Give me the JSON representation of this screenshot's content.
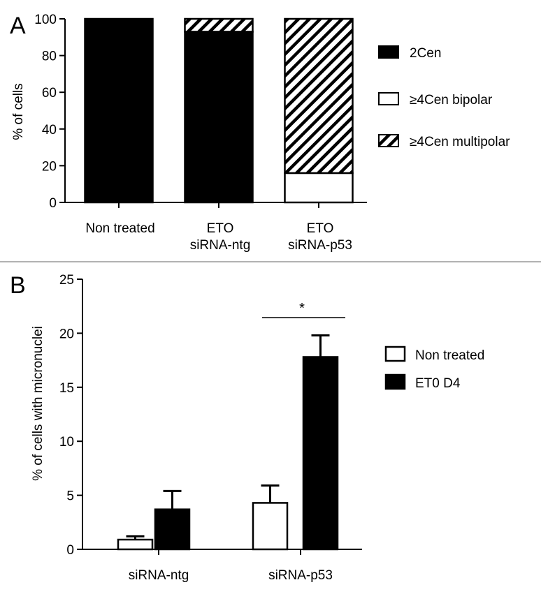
{
  "chart_data": [
    {
      "panel": "A",
      "type": "bar",
      "stacked": true,
      "title": "",
      "xlabel": "",
      "ylabel": "% of cells",
      "ylim": [
        0,
        100
      ],
      "yticks": [
        0,
        20,
        40,
        60,
        80,
        100
      ],
      "categories": [
        {
          "lines": [
            "Non treated"
          ]
        },
        {
          "lines": [
            "ETO",
            "siRNA-ntg"
          ]
        },
        {
          "lines": [
            "ETO",
            "siRNA-p53"
          ]
        }
      ],
      "series": [
        {
          "name": "2Cen",
          "fill": "solid",
          "values": [
            100,
            93,
            0
          ]
        },
        {
          "name": "≥4Cen bipolar",
          "fill": "open",
          "values": [
            0,
            0,
            16
          ]
        },
        {
          "name": "≥4Cen multipolar",
          "fill": "hatched",
          "values": [
            0,
            7,
            84
          ]
        }
      ],
      "legend_position": "right",
      "grid": false
    },
    {
      "panel": "B",
      "type": "bar",
      "grouped": true,
      "title": "",
      "xlabel": "",
      "ylabel": "% of cells with micronuclei",
      "ylim": [
        0,
        25
      ],
      "yticks": [
        0,
        5,
        10,
        15,
        20,
        25
      ],
      "categories": [
        "siRNA-ntg",
        "siRNA-p53"
      ],
      "series": [
        {
          "name": "Non treated",
          "fill": "open",
          "values": [
            0.9,
            4.3
          ],
          "errors": [
            0.3,
            1.6
          ]
        },
        {
          "name": "ET0 D4",
          "fill": "solid",
          "values": [
            3.7,
            17.8
          ],
          "errors": [
            1.7,
            2.0
          ]
        }
      ],
      "annotations": [
        {
          "text": "*",
          "category": "siRNA-p53"
        }
      ],
      "legend_position": "right",
      "grid": false
    }
  ]
}
